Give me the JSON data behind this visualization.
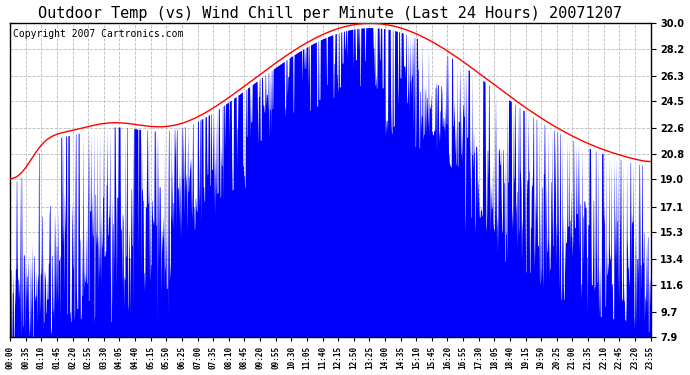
{
  "title": "Outdoor Temp (vs) Wind Chill per Minute (Last 24 Hours) 20071207",
  "copyright": "Copyright 2007 Cartronics.com",
  "yticks": [
    7.9,
    9.7,
    11.6,
    13.4,
    15.3,
    17.1,
    19.0,
    20.8,
    22.6,
    24.5,
    26.3,
    28.2,
    30.0
  ],
  "ylim": [
    7.9,
    30.0
  ],
  "xtick_labels": [
    "00:00",
    "00:35",
    "01:10",
    "01:45",
    "02:20",
    "02:55",
    "03:30",
    "04:05",
    "04:40",
    "05:15",
    "05:50",
    "06:25",
    "07:00",
    "07:35",
    "08:10",
    "08:45",
    "09:20",
    "09:55",
    "10:30",
    "11:05",
    "11:40",
    "12:15",
    "12:50",
    "13:25",
    "14:00",
    "14:35",
    "15:10",
    "15:45",
    "16:20",
    "16:55",
    "17:30",
    "18:05",
    "18:40",
    "19:15",
    "19:50",
    "20:25",
    "21:00",
    "21:35",
    "22:10",
    "22:45",
    "23:20",
    "23:55"
  ],
  "background_color": "#ffffff",
  "plot_bg_color": "#ffffff",
  "grid_color": "#bbbbbb",
  "outer_temp_color": "#ff0000",
  "wind_chill_color": "#0000ff",
  "title_fontsize": 11,
  "copyright_fontsize": 7
}
